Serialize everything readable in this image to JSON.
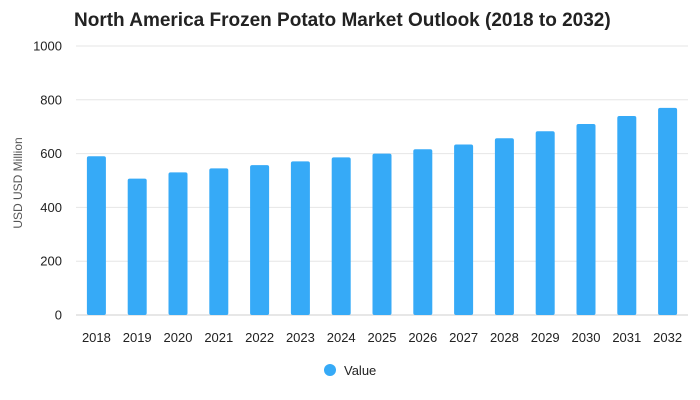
{
  "chart_data": {
    "type": "bar",
    "title": "North America Frozen Potato Market Outlook (2018 to 2032)",
    "xlabel": "",
    "ylabel": "USD USD Million",
    "categories": [
      "2018",
      "2019",
      "2020",
      "2021",
      "2022",
      "2023",
      "2024",
      "2025",
      "2026",
      "2027",
      "2028",
      "2029",
      "2030",
      "2031",
      "2032"
    ],
    "series": [
      {
        "name": "Value",
        "values": [
          590,
          507,
          530,
          545,
          557,
          571,
          586,
          600,
          616,
          634,
          657,
          683,
          710,
          740,
          770
        ]
      }
    ],
    "ylim": [
      0,
      1000
    ],
    "yticks": [
      0,
      200,
      400,
      600,
      800,
      1000
    ],
    "grid": true,
    "legend_position": "bottom-center",
    "colors": {
      "bar": "#36aaf7",
      "grid": "#e6e6e6",
      "text": "#222222"
    }
  }
}
